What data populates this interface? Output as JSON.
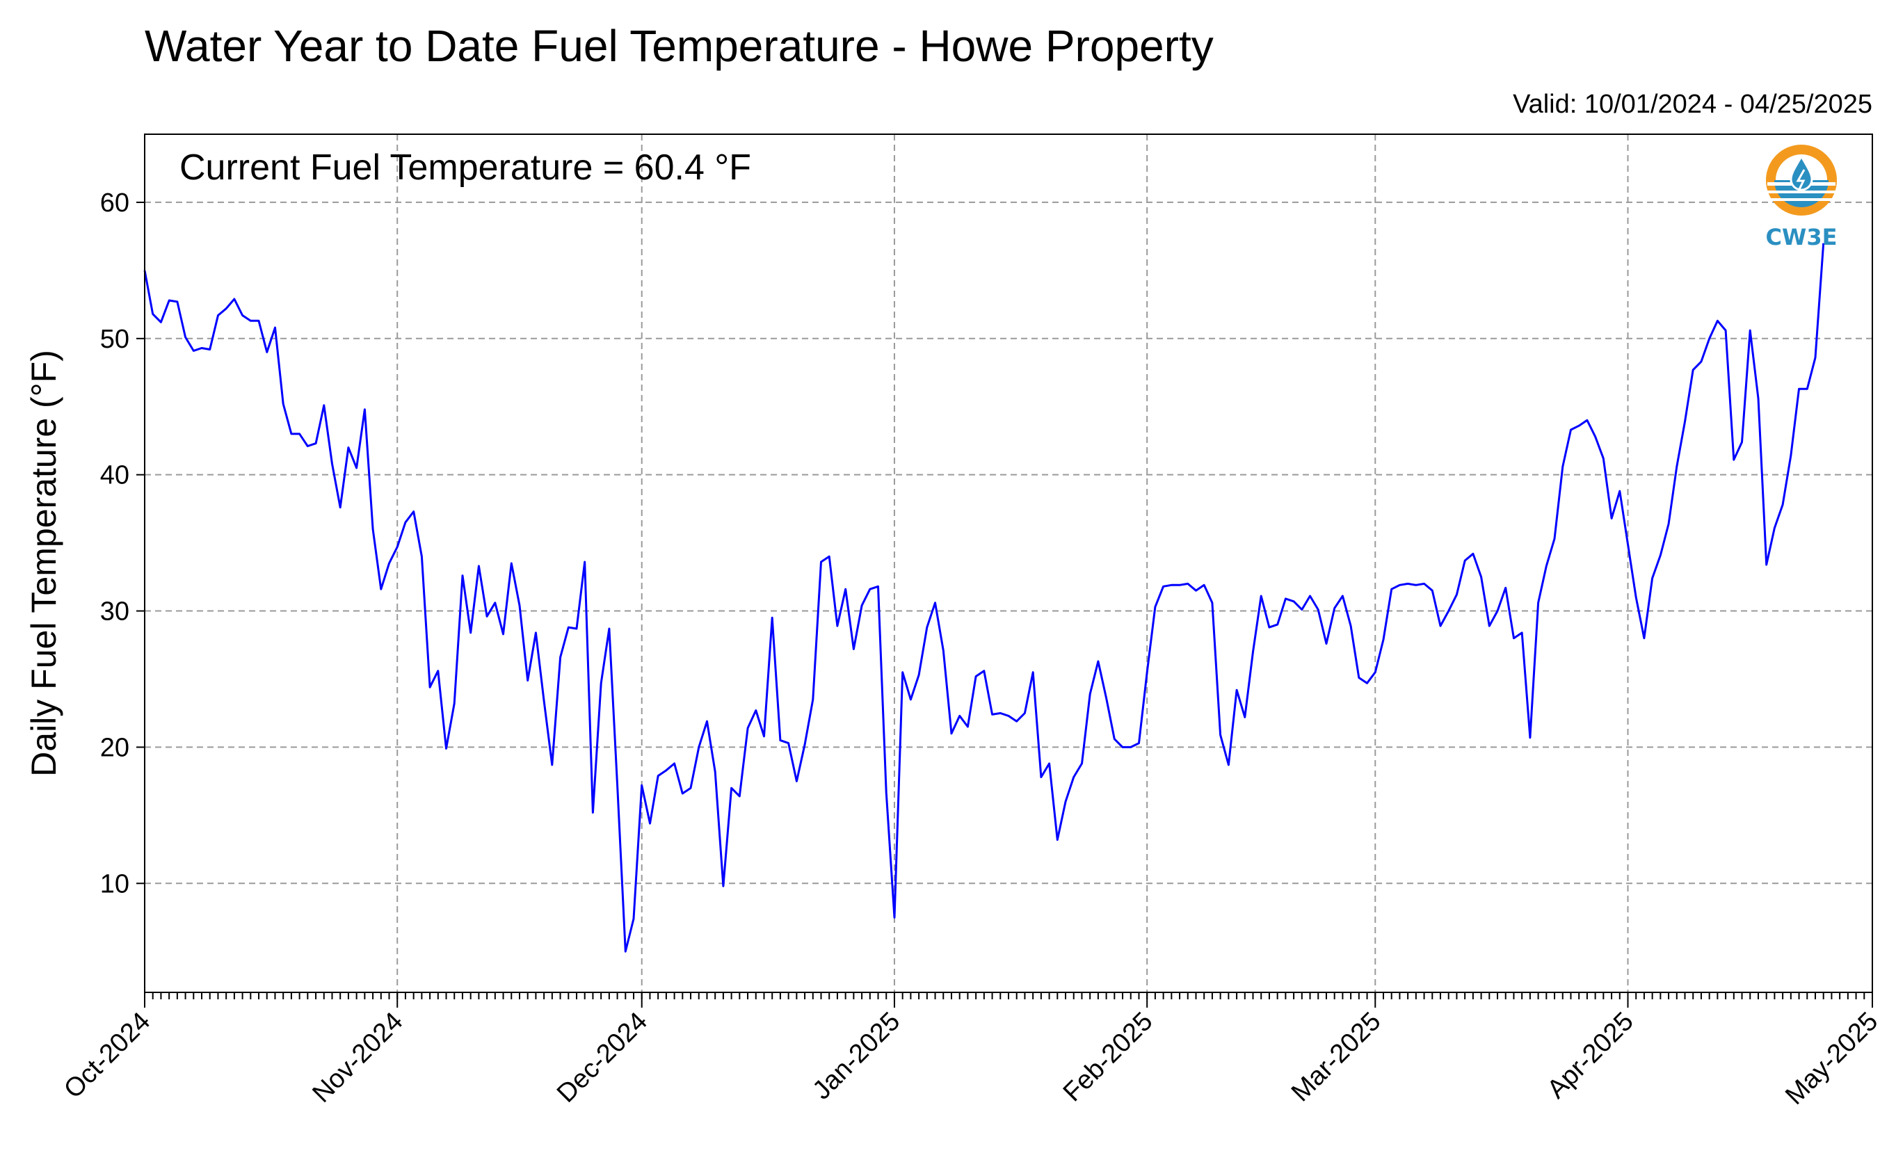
{
  "header": {
    "title": "Water Year to Date Fuel Temperature - Howe Property",
    "valid": "Valid: 10/01/2024 - 04/25/2025",
    "current": "Current Fuel Temperature = 60.4 °F"
  },
  "logo": {
    "text": "CW3E",
    "icon": "cw3e-logo-icon",
    "orange": "#f39a1e",
    "blue": "#2a8fc1"
  },
  "colors": {
    "line": "#0000ff",
    "grid": "#9a9a9a"
  },
  "chart_data": {
    "type": "line",
    "title": "Water Year to Date Fuel Temperature - Howe Property",
    "ylabel": "Daily Fuel Temperature (°F)",
    "xlabel": "",
    "xlim": [
      "2024-10-01",
      "2025-05-01"
    ],
    "ylim": [
      2,
      65
    ],
    "yticks": [
      10,
      20,
      30,
      40,
      50,
      60
    ],
    "xtick_labels": [
      "Oct-2024",
      "Nov-2024",
      "Dec-2024",
      "Jan-2025",
      "Feb-2025",
      "Mar-2025",
      "Apr-2025",
      "May-2025"
    ],
    "xtick_dates": [
      "2024-10-01",
      "2024-11-01",
      "2024-12-01",
      "2025-01-01",
      "2025-02-01",
      "2025-03-01",
      "2025-04-01",
      "2025-05-01"
    ],
    "grid": true,
    "series": [
      {
        "x": [
          "2024-10-01",
          "2024-10-02",
          "2024-10-03",
          "2024-10-04",
          "2024-10-05",
          "2024-10-06",
          "2024-10-07",
          "2024-10-08",
          "2024-10-09",
          "2024-10-10",
          "2024-10-11",
          "2024-10-12",
          "2024-10-13",
          "2024-10-14",
          "2024-10-15",
          "2024-10-16",
          "2024-10-17",
          "2024-10-18",
          "2024-10-19",
          "2024-10-20",
          "2024-10-21",
          "2024-10-22",
          "2024-10-23",
          "2024-10-24",
          "2024-10-25",
          "2024-10-26",
          "2024-10-27",
          "2024-10-28",
          "2024-10-29",
          "2024-10-30",
          "2024-10-31",
          "2024-11-01",
          "2024-11-02",
          "2024-11-03",
          "2024-11-04",
          "2024-11-05",
          "2024-11-06",
          "2024-11-07",
          "2024-11-08",
          "2024-11-09",
          "2024-11-10",
          "2024-11-11",
          "2024-11-12",
          "2024-11-13",
          "2024-11-14",
          "2024-11-15",
          "2024-11-16",
          "2024-11-17",
          "2024-11-18",
          "2024-11-19",
          "2024-11-20",
          "2024-11-21",
          "2024-11-22",
          "2024-11-23",
          "2024-11-24",
          "2024-11-25",
          "2024-11-26",
          "2024-11-27",
          "2024-11-28",
          "2024-11-29",
          "2024-11-30",
          "2024-12-01",
          "2024-12-02",
          "2024-12-03",
          "2024-12-04",
          "2024-12-05",
          "2024-12-06",
          "2024-12-07",
          "2024-12-08",
          "2024-12-09",
          "2024-12-10",
          "2024-12-11",
          "2024-12-12",
          "2024-12-13",
          "2024-12-14",
          "2024-12-15",
          "2024-12-16",
          "2024-12-17",
          "2024-12-18",
          "2024-12-19",
          "2024-12-20",
          "2024-12-21",
          "2024-12-22",
          "2024-12-23",
          "2024-12-24",
          "2024-12-25",
          "2024-12-26",
          "2024-12-27",
          "2024-12-28",
          "2024-12-29",
          "2024-12-30",
          "2024-12-31",
          "2025-01-01",
          "2025-01-02",
          "2025-01-03",
          "2025-01-04",
          "2025-01-05",
          "2025-01-06",
          "2025-01-07",
          "2025-01-08",
          "2025-01-09",
          "2025-01-10",
          "2025-01-11",
          "2025-01-12",
          "2025-01-13",
          "2025-01-14",
          "2025-01-15",
          "2025-01-16",
          "2025-01-17",
          "2025-01-18",
          "2025-01-19",
          "2025-01-20",
          "2025-01-21",
          "2025-01-22",
          "2025-01-23",
          "2025-01-24",
          "2025-01-25",
          "2025-01-26",
          "2025-01-27",
          "2025-01-28",
          "2025-01-29",
          "2025-01-30",
          "2025-01-31",
          "2025-02-01",
          "2025-02-02",
          "2025-02-03",
          "2025-02-04",
          "2025-02-05",
          "2025-02-06",
          "2025-02-07",
          "2025-02-08",
          "2025-02-09",
          "2025-02-10",
          "2025-02-11",
          "2025-02-12",
          "2025-02-13",
          "2025-02-14",
          "2025-02-15",
          "2025-02-16",
          "2025-02-17",
          "2025-02-18",
          "2025-02-19",
          "2025-02-20",
          "2025-02-21",
          "2025-02-22",
          "2025-02-23",
          "2025-02-24",
          "2025-02-25",
          "2025-02-26",
          "2025-02-27",
          "2025-02-28",
          "2025-03-01",
          "2025-03-02",
          "2025-03-03",
          "2025-03-04",
          "2025-03-05",
          "2025-03-06",
          "2025-03-07",
          "2025-03-08",
          "2025-03-09",
          "2025-03-10",
          "2025-03-11",
          "2025-03-12",
          "2025-03-13",
          "2025-03-14",
          "2025-03-15",
          "2025-03-16",
          "2025-03-17",
          "2025-03-18",
          "2025-03-19",
          "2025-03-20",
          "2025-03-21",
          "2025-03-22",
          "2025-03-23",
          "2025-03-24",
          "2025-03-25",
          "2025-03-26",
          "2025-03-27",
          "2025-03-28",
          "2025-03-29",
          "2025-03-30",
          "2025-03-31",
          "2025-04-01",
          "2025-04-02",
          "2025-04-03",
          "2025-04-04",
          "2025-04-05",
          "2025-04-06",
          "2025-04-07",
          "2025-04-08",
          "2025-04-09",
          "2025-04-10",
          "2025-04-11",
          "2025-04-12",
          "2025-04-13",
          "2025-04-14",
          "2025-04-15",
          "2025-04-16",
          "2025-04-17",
          "2025-04-18",
          "2025-04-19",
          "2025-04-20",
          "2025-04-21",
          "2025-04-22",
          "2025-04-23",
          "2025-04-24",
          "2025-04-25"
        ],
        "values": [
          55.0,
          51.8,
          51.2,
          52.8,
          52.7,
          50.1,
          49.1,
          49.3,
          49.2,
          51.7,
          52.2,
          52.9,
          51.7,
          51.3,
          51.3,
          49.0,
          50.8,
          45.2,
          43.0,
          43.0,
          42.1,
          42.3,
          45.1,
          40.8,
          37.6,
          42.0,
          40.5,
          44.8,
          36.0,
          31.6,
          33.5,
          34.7,
          36.5,
          37.3,
          34.0,
          24.4,
          25.6,
          19.9,
          23.2,
          32.6,
          28.4,
          33.3,
          29.6,
          30.6,
          28.3,
          33.5,
          30.4,
          24.9,
          28.4,
          23.4,
          18.7,
          26.6,
          28.8,
          28.7,
          33.6,
          15.2,
          24.7,
          28.7,
          17.2,
          5.0,
          7.4,
          17.2,
          14.4,
          17.9,
          18.3,
          18.8,
          16.6,
          17.0,
          20.0,
          21.9,
          18.2,
          9.8,
          17.0,
          16.4,
          21.4,
          22.7,
          20.8,
          29.5,
          20.5,
          20.3,
          17.5,
          20.2,
          23.5,
          33.6,
          34.0,
          28.9,
          31.6,
          27.2,
          30.4,
          31.6,
          31.8,
          16.7,
          7.5,
          25.5,
          23.5,
          25.3,
          28.8,
          30.6,
          27.1,
          21.0,
          22.3,
          21.5,
          25.2,
          25.6,
          22.4,
          22.5,
          22.3,
          21.9,
          22.5,
          25.5,
          17.8,
          18.8,
          13.2,
          16.0,
          17.8,
          18.8,
          23.9,
          26.3,
          23.6,
          20.6,
          20.0,
          20.0,
          20.3,
          25.5,
          30.3,
          31.8,
          31.9,
          31.9,
          32.0,
          31.5,
          31.9,
          30.6,
          20.9,
          18.7,
          24.2,
          22.2,
          27.0,
          31.1,
          28.8,
          29.0,
          30.9,
          30.7,
          30.1,
          31.1,
          30.1,
          27.6,
          30.2,
          31.1,
          28.9,
          25.1,
          24.7,
          25.5,
          27.9,
          31.6,
          31.9,
          32.0,
          31.9,
          32.0,
          31.5,
          28.9,
          30.0,
          31.2,
          33.7,
          34.2,
          32.5,
          28.9,
          30.0,
          31.7,
          28.0,
          28.4,
          20.7,
          30.6,
          33.3,
          35.3,
          40.6,
          43.3,
          43.6,
          44.0,
          42.8,
          41.2,
          36.8,
          38.8,
          34.9,
          31.0,
          28.0,
          32.4,
          34.1,
          36.4,
          40.6,
          43.9,
          47.7,
          48.3,
          50.0,
          51.3,
          50.6,
          41.1,
          42.4,
          50.6,
          45.6,
          33.4,
          36.1,
          37.8,
          41.4,
          46.3,
          46.3,
          48.6,
          57.0
        ]
      }
    ]
  }
}
